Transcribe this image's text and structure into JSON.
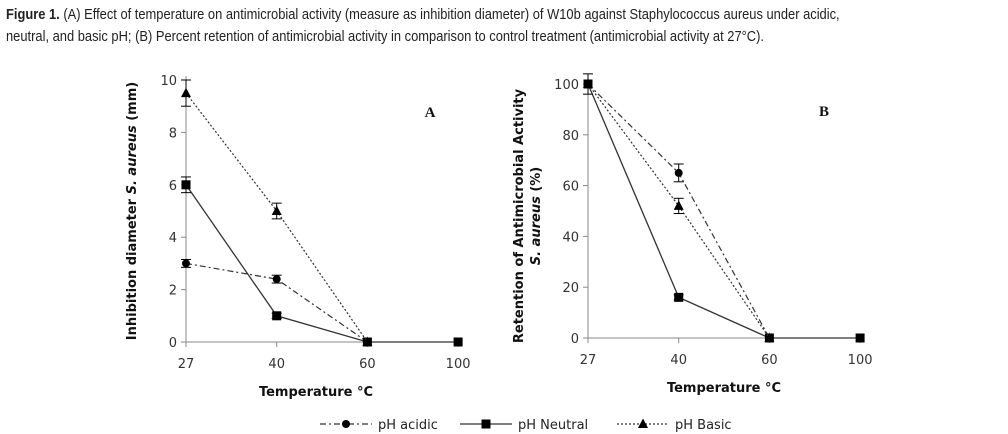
{
  "caption": {
    "label": "Figure 1.",
    "line1": " (A) Effect of temperature on antimicrobial activity (measure as inhibition diameter) of W10b against Staphylococcus aureus under acidic,",
    "line2": "neutral, and basic pH; (B) Percent retention of antimicrobial activity in comparison to control treatment (antimicrobial activity at 27°C)."
  },
  "legend": [
    {
      "label": "pH acidic",
      "marker": "circle",
      "dash": "dashdot"
    },
    {
      "label": "pH Neutral",
      "marker": "square",
      "dash": "solid"
    },
    {
      "label": "pH Basic",
      "marker": "triangle",
      "dash": "dotted"
    }
  ],
  "chart_data": [
    {
      "type": "line",
      "panel_label": "A",
      "xlabel": "Temperature °C",
      "ylabel_prefix": "Inhibition diameter ",
      "ylabel_italic": "S. aureus",
      "ylabel_suffix": " (mm)",
      "x": [
        27,
        40,
        60,
        100
      ],
      "x_tick_labels": [
        "27",
        "40",
        "60",
        "100"
      ],
      "ylim": [
        0,
        10
      ],
      "y_ticks": [
        0,
        2,
        4,
        6,
        8,
        10
      ],
      "grid": false,
      "legend_position": "bottom",
      "series": [
        {
          "name": "pH acidic",
          "x": [
            27,
            40,
            60
          ],
          "values": [
            3.0,
            2.4,
            0
          ],
          "errors": [
            0.15,
            0.15,
            0
          ]
        },
        {
          "name": "pH Neutral",
          "x": [
            27,
            40,
            60,
            100
          ],
          "values": [
            6.0,
            1.0,
            0,
            0
          ],
          "errors": [
            0.3,
            0.1,
            0,
            0
          ]
        },
        {
          "name": "pH Basic",
          "x": [
            27,
            40,
            60
          ],
          "values": [
            9.5,
            5.0,
            0
          ],
          "errors": [
            0.5,
            0.3,
            0
          ]
        }
      ]
    },
    {
      "type": "line",
      "panel_label": "B",
      "xlabel": "Temperature °C",
      "ylabel_line1": "Retention of Antimicrobial Activity",
      "ylabel_line2_italic": "S. aureus",
      "ylabel_line2_suffix": " (%)",
      "x": [
        27,
        40,
        60,
        100
      ],
      "x_tick_labels": [
        "27",
        "40",
        "60",
        "100"
      ],
      "ylim": [
        0,
        100
      ],
      "y_ticks": [
        0,
        20,
        40,
        60,
        80,
        100
      ],
      "grid": false,
      "legend_position": "bottom",
      "series": [
        {
          "name": "pH acidic",
          "x": [
            27,
            40,
            60
          ],
          "values": [
            100,
            65,
            0
          ],
          "errors": [
            0,
            3.5,
            0
          ]
        },
        {
          "name": "pH Neutral",
          "x": [
            27,
            40,
            60,
            100
          ],
          "values": [
            100,
            16,
            0,
            0
          ],
          "errors": [
            4,
            1,
            0,
            0
          ]
        },
        {
          "name": "pH Basic",
          "x": [
            27,
            40,
            60
          ],
          "values": [
            100,
            52,
            0
          ],
          "errors": [
            0,
            3,
            0
          ]
        }
      ]
    }
  ]
}
